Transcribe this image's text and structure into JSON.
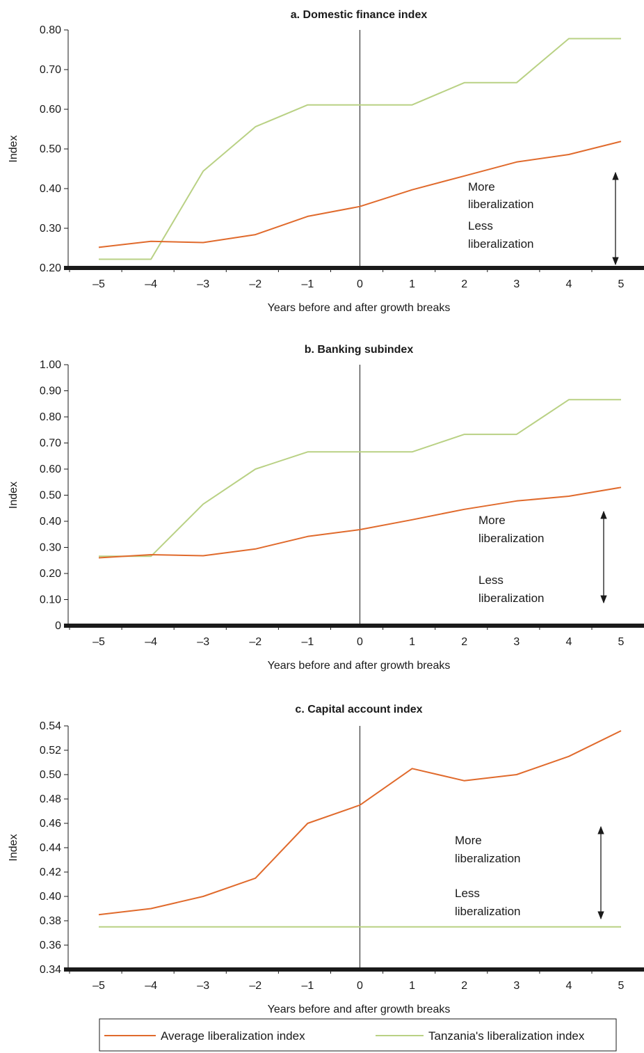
{
  "chart_data": [
    {
      "type": "line",
      "title": "a. Domestic finance index",
      "xlabel": "Years before and after growth breaks",
      "ylabel": "Index",
      "x": [
        -5,
        -4,
        -3,
        -2,
        -1,
        0,
        1,
        2,
        3,
        4,
        5
      ],
      "x_tick_labels": [
        "–5",
        "–4",
        "–3",
        "–2",
        "–1",
        "0",
        "1",
        "2",
        "3",
        "4",
        "5"
      ],
      "ylim": [
        0.2,
        0.8
      ],
      "y_ticks": [
        0.2,
        0.3,
        0.4,
        0.5,
        0.6,
        0.7,
        0.8
      ],
      "y_tick_labels": [
        "0.20",
        "0.30",
        "0.40",
        "0.50",
        "0.60",
        "0.70",
        "0.80"
      ],
      "series": [
        {
          "name": "Average liberalization index",
          "color": "#e06a2c",
          "values": [
            0.252,
            0.267,
            0.264,
            0.284,
            0.33,
            0.355,
            0.397,
            0.432,
            0.467,
            0.486,
            0.519
          ]
        },
        {
          "name": "Tanzania's liberalization index",
          "color": "#b9d184",
          "values": [
            0.222,
            0.222,
            0.444,
            0.556,
            0.611,
            0.611,
            0.611,
            0.667,
            0.667,
            0.778,
            0.778
          ]
        }
      ],
      "annotation": {
        "more": [
          "More",
          "liberalization"
        ],
        "less": [
          "Less",
          "liberalization"
        ]
      }
    },
    {
      "type": "line",
      "title": "b. Banking subindex",
      "xlabel": "Years before and after growth breaks",
      "ylabel": "Index",
      "x": [
        -5,
        -4,
        -3,
        -2,
        -1,
        0,
        1,
        2,
        3,
        4,
        5
      ],
      "x_tick_labels": [
        "–5",
        "–4",
        "–3",
        "–2",
        "–1",
        "0",
        "1",
        "2",
        "3",
        "4",
        "5"
      ],
      "ylim": [
        0,
        1.0
      ],
      "y_ticks": [
        0,
        0.1,
        0.2,
        0.3,
        0.4,
        0.5,
        0.6,
        0.7,
        0.8,
        0.9,
        1.0
      ],
      "y_tick_labels": [
        "0",
        "0.10",
        "0.20",
        "0.30",
        "0.40",
        "0.50",
        "0.60",
        "0.70",
        "0.80",
        "0.90",
        "1.00"
      ],
      "series": [
        {
          "name": "Average liberalization index",
          "color": "#e06a2c",
          "values": [
            0.26,
            0.272,
            0.268,
            0.294,
            0.342,
            0.368,
            0.406,
            0.446,
            0.478,
            0.496,
            0.53
          ]
        },
        {
          "name": "Tanzania's liberalization index",
          "color": "#b9d184",
          "values": [
            0.266,
            0.266,
            0.466,
            0.6,
            0.666,
            0.666,
            0.666,
            0.733,
            0.733,
            0.866,
            0.866
          ]
        }
      ],
      "annotation": {
        "more": [
          "More",
          "liberalization"
        ],
        "less": [
          "Less",
          "liberalization"
        ]
      }
    },
    {
      "type": "line",
      "title": "c. Capital account index",
      "xlabel": "Years before and after growth breaks",
      "ylabel": "Index",
      "x": [
        -5,
        -4,
        -3,
        -2,
        -1,
        0,
        1,
        2,
        3,
        4,
        5
      ],
      "x_tick_labels": [
        "–5",
        "–4",
        "–3",
        "–2",
        "–1",
        "0",
        "1",
        "2",
        "3",
        "4",
        "5"
      ],
      "ylim": [
        0.34,
        0.54
      ],
      "y_ticks": [
        0.34,
        0.36,
        0.38,
        0.4,
        0.42,
        0.44,
        0.46,
        0.48,
        0.5,
        0.52,
        0.54
      ],
      "y_tick_labels": [
        "0.34",
        "0.36",
        "0.38",
        "0.40",
        "0.42",
        "0.44",
        "0.46",
        "0.48",
        "0.50",
        "0.52",
        "0.54"
      ],
      "series": [
        {
          "name": "Average liberalization index",
          "color": "#e06a2c",
          "values": [
            0.385,
            0.39,
            0.4,
            0.415,
            0.46,
            0.475,
            0.505,
            0.495,
            0.5,
            0.515,
            0.536
          ]
        },
        {
          "name": "Tanzania's liberalization index",
          "color": "#b9d184",
          "values": [
            0.375,
            0.375,
            0.375,
            0.375,
            0.375,
            0.375,
            0.375,
            0.375,
            0.375,
            0.375,
            0.375
          ]
        }
      ],
      "annotation": {
        "more": [
          "More",
          "liberalization"
        ],
        "less": [
          "Less",
          "liberalization"
        ]
      }
    }
  ],
  "legend": [
    {
      "label": "Average liberalization index",
      "color": "#e06a2c"
    },
    {
      "label": "Tanzania's liberalization index",
      "color": "#b9d184"
    }
  ]
}
